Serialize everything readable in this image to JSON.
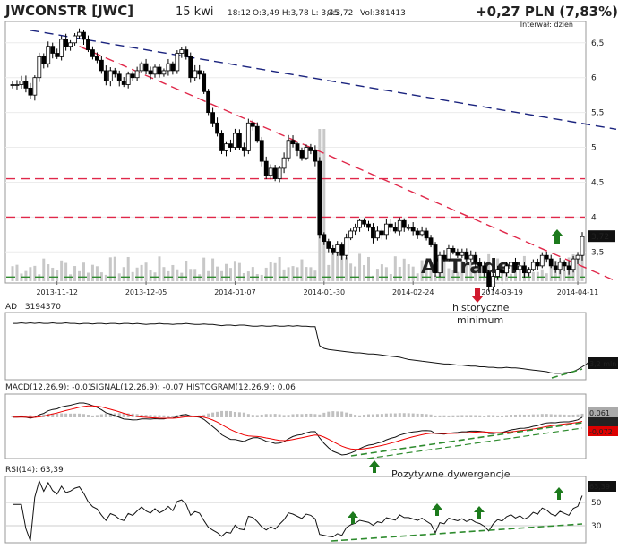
{
  "header": {
    "ticker": "JWCONSTR [JWC]",
    "date": "15 kwi",
    "time": "18:12",
    "ohlc": "O:3,49 H:3,78 L: 3,45",
    "close_label": "C:3,72",
    "volume": "Vol:381413",
    "change": "+0,27 PLN (7,83%)",
    "interval": "Interwał: dzień"
  },
  "colors": {
    "candle_up": "#ffffff",
    "candle_down": "#000000",
    "trend_blue": "#1a237e",
    "trend_red": "#e0284a",
    "support_green": "#2e8b2e",
    "price_tag_bg": "#111111",
    "volume_bar": "#c8c8c8",
    "macd_line": "#000000",
    "signal_line": "#e00000",
    "arrow_green": "#1c7a1c",
    "arrow_red": "#d01a2e"
  },
  "chart_data": [
    {
      "type": "candlestick",
      "title": "JWCONSTR [JWC]",
      "ylim": [
        3.08,
        6.78
      ],
      "y_ticks": [
        "6,5",
        "6",
        "5,5",
        "5",
        "4,5",
        "4",
        "3,5"
      ],
      "x_ticks": [
        "2013-11-12",
        "2013-12-05",
        "2014-01-07",
        "2014-01-30",
        "2014-02-24",
        "2014-03-19",
        "2014-04-11"
      ],
      "last_price_label": "3,72",
      "close": [
        5.9,
        5.9,
        5.95,
        5.85,
        5.75,
        6.0,
        6.3,
        6.2,
        6.45,
        6.35,
        6.3,
        6.55,
        6.45,
        6.5,
        6.6,
        6.65,
        6.55,
        6.4,
        6.3,
        6.25,
        6.1,
        5.95,
        6.1,
        6.05,
        5.95,
        5.9,
        6.05,
        6.0,
        6.1,
        6.2,
        6.1,
        6.05,
        6.15,
        6.05,
        6.1,
        6.2,
        6.1,
        6.35,
        6.4,
        6.3,
        6.0,
        6.1,
        6.05,
        5.8,
        5.5,
        5.35,
        5.2,
        4.95,
        5.05,
        5.0,
        5.2,
        5.0,
        4.95,
        5.35,
        5.3,
        5.1,
        4.8,
        4.6,
        4.7,
        4.55,
        4.7,
        4.85,
        5.1,
        5.05,
        4.95,
        4.85,
        5.0,
        4.95,
        4.8,
        3.75,
        3.65,
        3.55,
        3.5,
        3.6,
        3.45,
        3.7,
        3.8,
        3.85,
        3.95,
        3.9,
        3.85,
        3.7,
        3.8,
        3.75,
        3.9,
        3.85,
        3.8,
        3.95,
        3.85,
        3.85,
        3.8,
        3.75,
        3.8,
        3.7,
        3.6,
        3.2,
        3.45,
        3.4,
        3.55,
        3.5,
        3.45,
        3.5,
        3.4,
        3.45,
        3.35,
        3.3,
        3.2,
        3.0,
        3.15,
        3.25,
        3.2,
        3.3,
        3.35,
        3.25,
        3.3,
        3.2,
        3.25,
        3.35,
        3.3,
        3.45,
        3.4,
        3.3,
        3.25,
        3.35,
        3.3,
        3.25,
        3.4,
        3.45,
        3.72
      ],
      "trendlines": [
        {
          "from": [
            "2013-11-18",
            6.68
          ],
          "to": [
            "2014-04-15",
            5.26
          ]
        },
        {
          "from": [
            "2013-12-04",
            6.45
          ],
          "to": [
            "2014-04-15",
            3.08
          ]
        }
      ],
      "horizontal_levels": [
        4.55,
        4.0,
        3.14
      ],
      "annotations": [
        "historyczne",
        "minimum"
      ],
      "watermark": "ATTrader"
    },
    {
      "type": "line",
      "title": "AD",
      "value_label": "3194370",
      "last_value_tag": "3,2 mln",
      "values": [
        0.95,
        0.95,
        0.96,
        0.95,
        0.96,
        0.95,
        0.96,
        0.95,
        0.95,
        0.96,
        0.95,
        0.95,
        0.96,
        0.95,
        0.95,
        0.94,
        0.95,
        0.95,
        0.94,
        0.95,
        0.95,
        0.94,
        0.95,
        0.95,
        0.94,
        0.95,
        0.95,
        0.94,
        0.95,
        0.94,
        0.93,
        0.94,
        0.94,
        0.95,
        0.94,
        0.94,
        0.93,
        0.94,
        0.94,
        0.95,
        0.94,
        0.93,
        0.93,
        0.94,
        0.93,
        0.93,
        0.92,
        0.91,
        0.92,
        0.92,
        0.91,
        0.92,
        0.92,
        0.91,
        0.9,
        0.9,
        0.91,
        0.9,
        0.9,
        0.91,
        0.9,
        0.9,
        0.91,
        0.9,
        0.91,
        0.9,
        0.9,
        0.89,
        0.89,
        0.55,
        0.5,
        0.48,
        0.47,
        0.46,
        0.45,
        0.44,
        0.43,
        0.42,
        0.42,
        0.41,
        0.4,
        0.4,
        0.39,
        0.38,
        0.37,
        0.36,
        0.35,
        0.34,
        0.32,
        0.3,
        0.29,
        0.28,
        0.27,
        0.26,
        0.25,
        0.24,
        0.23,
        0.22,
        0.22,
        0.21,
        0.2,
        0.2,
        0.19,
        0.18,
        0.18,
        0.17,
        0.17,
        0.16,
        0.16,
        0.15,
        0.15,
        0.16,
        0.15,
        0.15,
        0.14,
        0.13,
        0.12,
        0.11,
        0.1,
        0.09,
        0.08,
        0.06,
        0.05,
        0.05,
        0.06,
        0.07,
        0.08,
        0.12,
        0.17,
        0.22,
        0.3
      ]
    },
    {
      "type": "line",
      "title": "MACD(12,26,9)",
      "macd_label": "MACD(12,26,9): -0,01",
      "signal_label": "SIGNAL(12,26,9): -0,07",
      "histogram_label": "HISTOGRAM(12,26,9): 0,06",
      "value_tags": [
        "0,061",
        "-0,01",
        "-0,072"
      ],
      "note": "Pozytywne dywergencje"
    },
    {
      "type": "line",
      "title": "RSI(14)",
      "value_label": "RSI(14): 63,39",
      "y_ticks": [
        "50",
        "30"
      ],
      "last_value_tag": "63,39",
      "ylim": [
        20,
        80
      ]
    }
  ]
}
